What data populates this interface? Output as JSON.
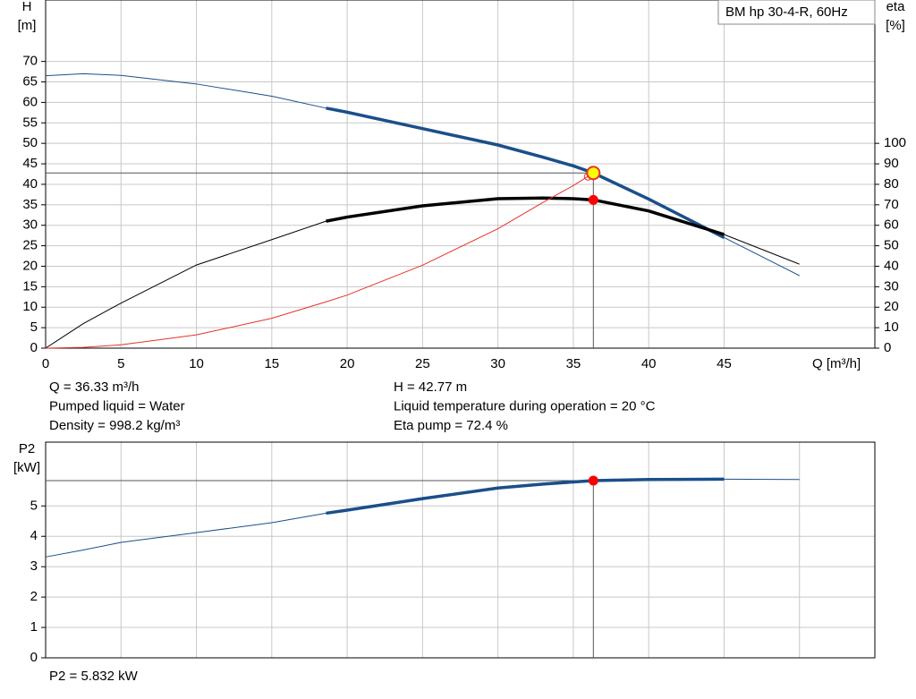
{
  "chart_data": [
    {
      "type": "line",
      "title": "BM hp 30-4-R, 60Hz",
      "x_label": "Q [m³/h]",
      "y_label": "H",
      "y_unit": "[m]",
      "y2_label": "eta",
      "y2_unit": "[%]",
      "x": [
        0,
        2.5,
        5,
        10,
        15,
        18.6,
        20,
        25,
        30,
        33,
        35,
        36.33,
        40,
        45,
        50
      ],
      "xlim": [
        0,
        55
      ],
      "xticks": [
        0,
        5,
        10,
        15,
        20,
        25,
        30,
        35,
        40,
        45
      ],
      "xtick_labels": true,
      "ylim": [
        0,
        85
      ],
      "yticks": [
        0,
        5,
        10,
        15,
        20,
        25,
        30,
        35,
        40,
        45,
        50,
        55,
        60,
        65,
        70
      ],
      "y2lim": [
        0,
        170
      ],
      "y2ticks": [
        0,
        10,
        20,
        30,
        40,
        50,
        60,
        70,
        80,
        90,
        100
      ],
      "grid": true,
      "bold_xlim": [
        18.6,
        45
      ],
      "series": [
        {
          "name": "H",
          "color": "#1a4f8a",
          "values": [
            66.5,
            67,
            66.6,
            64.5,
            61.5,
            58.6,
            57.6,
            53.6,
            49.6,
            46.6,
            44.5,
            42.77,
            36.4,
            27,
            17.7
          ]
        },
        {
          "name": "eta",
          "color": "#000000",
          "axis": "y2",
          "values": [
            0,
            12,
            22,
            40.6,
            53,
            62,
            64,
            69.5,
            73,
            73.3,
            73,
            72.4,
            67,
            55.5,
            41
          ]
        },
        {
          "name": "system",
          "color": "#e8312a",
          "thin": true,
          "values": [
            0,
            0.2,
            0.81,
            3.24,
            7.29,
            11.3,
            12.96,
            20.25,
            29.16,
            35.6,
            39.69,
            42.77,
            null,
            null,
            null
          ]
        }
      ],
      "operating_point": {
        "x": 36.33,
        "y": 42.77,
        "y2": 72.4
      },
      "annotations": [
        "Q = 36.33 m³/h",
        "Pumped liquid = Water",
        "Density = 998.2 kg/m³",
        "H = 42.77 m",
        "Liquid temperature during operation = 20 °C",
        "Eta pump = 72.4 %"
      ]
    },
    {
      "type": "line",
      "y_label": "P2",
      "y_unit": "[kW]",
      "x": [
        0,
        2.5,
        5,
        10,
        15,
        18.6,
        20,
        25,
        30,
        33,
        35,
        36.33,
        40,
        45,
        50
      ],
      "xlim": [
        0,
        55
      ],
      "xticks": [
        0,
        5,
        10,
        15,
        20,
        25,
        30,
        35,
        40,
        45,
        50
      ],
      "xtick_labels": false,
      "ylim": [
        0,
        7.1
      ],
      "yticks": [
        0,
        1,
        2,
        3,
        4,
        5
      ],
      "grid": true,
      "bold_xlim": [
        18.6,
        45
      ],
      "series": [
        {
          "name": "P2",
          "color": "#1a4f8a",
          "values": [
            3.32,
            3.55,
            3.8,
            4.12,
            4.45,
            4.76,
            4.86,
            5.24,
            5.59,
            5.72,
            5.79,
            5.832,
            5.87,
            5.88,
            5.87
          ]
        }
      ],
      "operating_point": {
        "x": 36.33,
        "y": 5.832
      },
      "annotations": [
        "P2 = 5.832 kW"
      ]
    }
  ]
}
